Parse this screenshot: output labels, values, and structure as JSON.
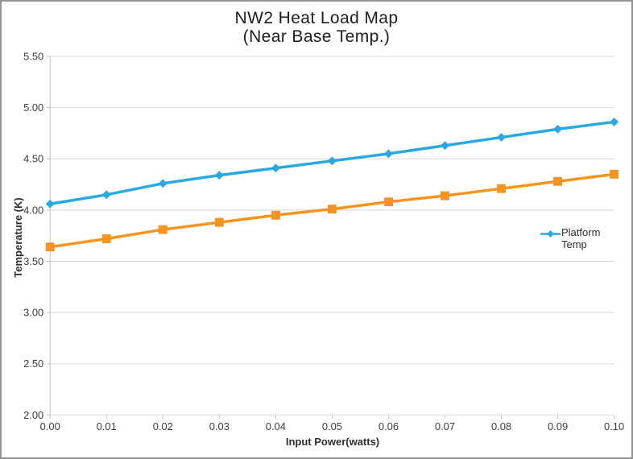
{
  "chart_data": {
    "type": "line",
    "title_lines": [
      "NW2 Heat Load Map",
      "(Near Base Temp.)"
    ],
    "xlabel": "Input Power(watts)",
    "ylabel": "Temperature (K)",
    "xlim": [
      0.0,
      0.1
    ],
    "ylim": [
      2.0,
      5.5
    ],
    "x_tick_labels": [
      "0.00",
      "0.01",
      "0.02",
      "0.03",
      "0.04",
      "0.05",
      "0.06",
      "0.07",
      "0.08",
      "0.09",
      "0.10"
    ],
    "y_tick_labels": [
      "2.00",
      "2.50",
      "3.00",
      "3.50",
      "4.00",
      "4.50",
      "5.00",
      "5.50"
    ],
    "grid": "horizontal-only",
    "x": [
      0.0,
      0.01,
      0.02,
      0.03,
      0.04,
      0.05,
      0.06,
      0.07,
      0.08,
      0.09,
      0.1
    ],
    "series": [
      {
        "name": "Platform Temp",
        "color": "#29A9E1",
        "marker": "diamond",
        "values": [
          4.06,
          4.15,
          4.26,
          4.34,
          4.41,
          4.48,
          4.55,
          4.63,
          4.71,
          4.79,
          4.86
        ]
      },
      {
        "name": "",
        "color": "#F7941E",
        "marker": "square",
        "values": [
          3.64,
          3.72,
          3.81,
          3.88,
          3.95,
          4.01,
          4.08,
          4.14,
          4.21,
          4.28,
          4.35
        ]
      }
    ],
    "legend": {
      "position": "right-inside",
      "entries": [
        {
          "label": "Platform Temp",
          "color": "#29A9E1",
          "marker": "diamond"
        }
      ]
    },
    "colors": {
      "grid": "#D8D8D8",
      "axis": "#C2C2C2",
      "tick_text": "#3d3d3d",
      "title_text": "#1e1e1e"
    }
  }
}
